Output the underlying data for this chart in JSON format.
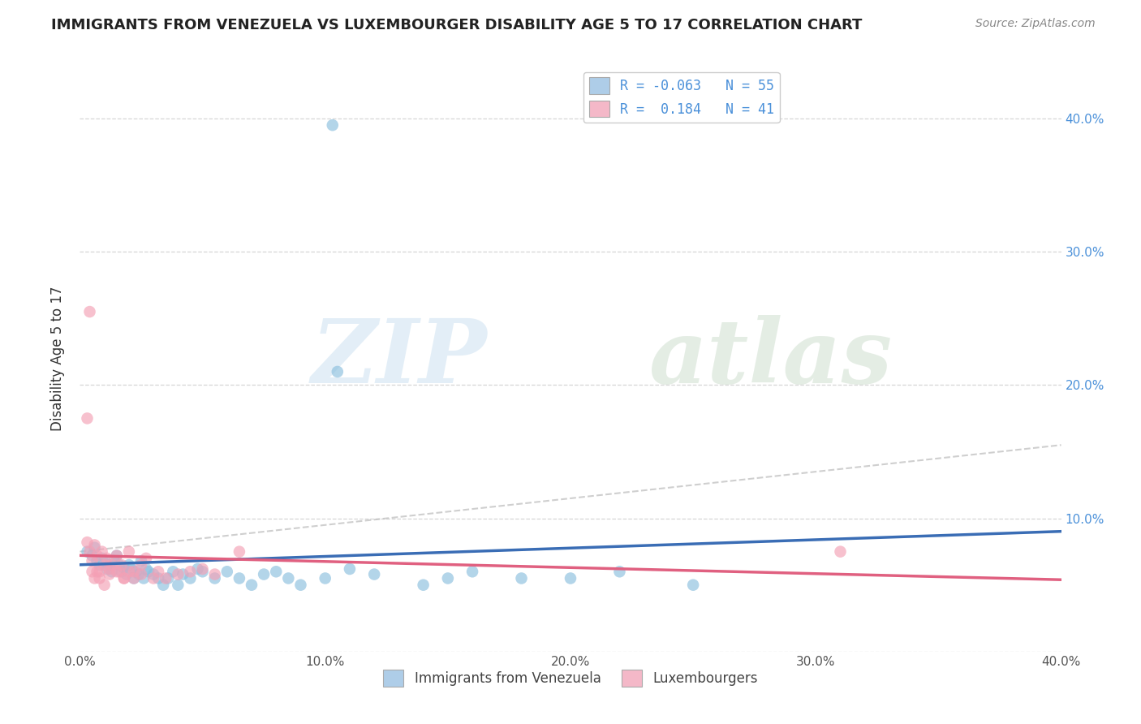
{
  "title": "IMMIGRANTS FROM VENEZUELA VS LUXEMBOURGER DISABILITY AGE 5 TO 17 CORRELATION CHART",
  "source": "Source: ZipAtlas.com",
  "ylabel": "Disability Age 5 to 17",
  "xlim": [
    0.0,
    0.4
  ],
  "ylim": [
    0.0,
    0.44
  ],
  "xticks": [
    0.0,
    0.1,
    0.2,
    0.3,
    0.4
  ],
  "yticks": [
    0.0,
    0.1,
    0.2,
    0.3,
    0.4
  ],
  "xtick_labels": [
    "0.0%",
    "10.0%",
    "20.0%",
    "30.0%",
    "40.0%"
  ],
  "right_ytick_labels": [
    "",
    "10.0%",
    "20.0%",
    "30.0%",
    "40.0%"
  ],
  "background_color": "#ffffff",
  "grid_color": "#cccccc",
  "blue_color": "#8bbfde",
  "blue_line_color": "#3a6db5",
  "pink_color": "#f4a0b5",
  "pink_line_color": "#e06080",
  "blue_scatter": {
    "x": [
      0.003,
      0.005,
      0.006,
      0.007,
      0.008,
      0.009,
      0.01,
      0.011,
      0.012,
      0.013,
      0.014,
      0.015,
      0.016,
      0.017,
      0.018,
      0.019,
      0.02,
      0.021,
      0.022,
      0.023,
      0.024,
      0.025,
      0.026,
      0.027,
      0.028,
      0.03,
      0.032,
      0.034,
      0.036,
      0.038,
      0.04,
      0.042,
      0.045,
      0.048,
      0.05,
      0.055,
      0.06,
      0.065,
      0.07,
      0.075,
      0.08,
      0.085,
      0.09,
      0.1,
      0.11,
      0.12,
      0.14,
      0.15,
      0.16,
      0.18,
      0.2,
      0.22,
      0.25,
      0.105,
      0.103
    ],
    "y": [
      0.075,
      0.072,
      0.078,
      0.068,
      0.065,
      0.07,
      0.068,
      0.062,
      0.065,
      0.06,
      0.068,
      0.072,
      0.065,
      0.06,
      0.063,
      0.058,
      0.065,
      0.062,
      0.055,
      0.06,
      0.058,
      0.068,
      0.055,
      0.062,
      0.06,
      0.058,
      0.055,
      0.05,
      0.055,
      0.06,
      0.05,
      0.058,
      0.055,
      0.062,
      0.06,
      0.055,
      0.06,
      0.055,
      0.05,
      0.058,
      0.06,
      0.055,
      0.05,
      0.055,
      0.062,
      0.058,
      0.05,
      0.055,
      0.06,
      0.055,
      0.055,
      0.06,
      0.05,
      0.21,
      0.395
    ]
  },
  "pink_scatter": {
    "x": [
      0.003,
      0.004,
      0.005,
      0.006,
      0.007,
      0.008,
      0.009,
      0.01,
      0.011,
      0.012,
      0.013,
      0.015,
      0.016,
      0.017,
      0.018,
      0.02,
      0.022,
      0.025,
      0.027,
      0.03,
      0.032,
      0.035,
      0.04,
      0.045,
      0.05,
      0.055,
      0.005,
      0.006,
      0.007,
      0.008,
      0.01,
      0.012,
      0.015,
      0.018,
      0.02,
      0.022,
      0.025,
      0.003,
      0.004,
      0.31,
      0.065
    ],
    "y": [
      0.082,
      0.075,
      0.068,
      0.08,
      0.072,
      0.06,
      0.075,
      0.065,
      0.07,
      0.062,
      0.065,
      0.072,
      0.06,
      0.065,
      0.055,
      0.075,
      0.06,
      0.065,
      0.07,
      0.055,
      0.06,
      0.055,
      0.058,
      0.06,
      0.062,
      0.058,
      0.06,
      0.055,
      0.06,
      0.055,
      0.05,
      0.058,
      0.06,
      0.055,
      0.06,
      0.055,
      0.058,
      0.175,
      0.255,
      0.075,
      0.075
    ]
  },
  "legend_text1": "R = -0.063   N = 55",
  "legend_text2": "R =  0.184   N = 41",
  "legend_label1": "Immigrants from Venezuela",
  "legend_label2": "Luxembourgers"
}
